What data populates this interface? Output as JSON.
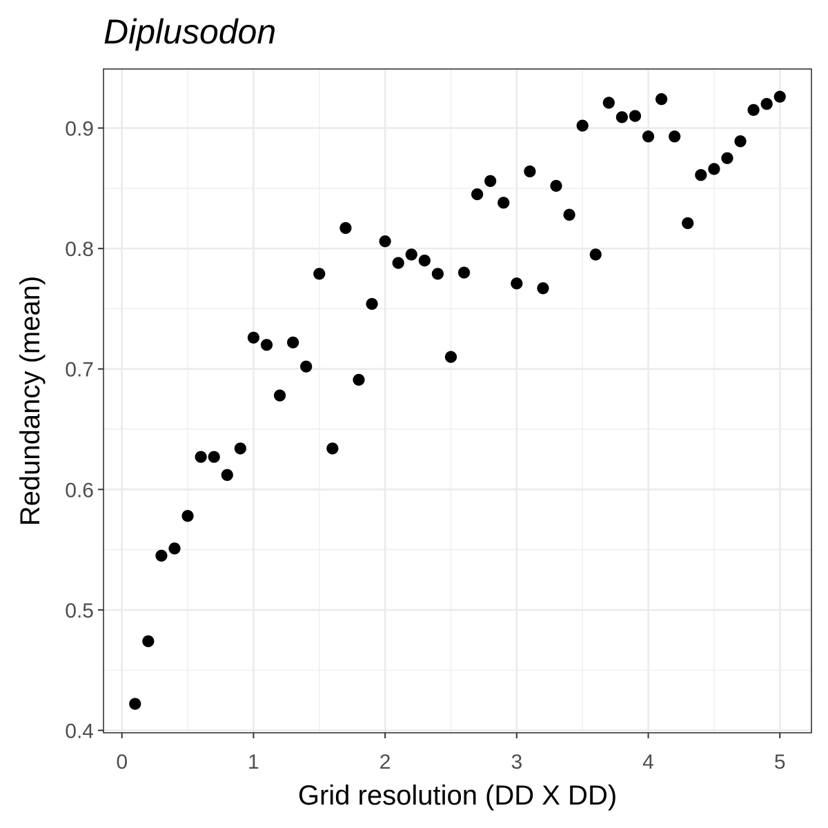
{
  "chart_data": {
    "type": "scatter",
    "title": "Diplusodon",
    "xlabel": "Grid resolution (DD X DD)",
    "ylabel": "Redundancy (mean)",
    "xlim": [
      -0.14,
      5.24
    ],
    "ylim": [
      0.398,
      0.949
    ],
    "xticks": [
      0,
      1,
      2,
      3,
      4,
      5
    ],
    "xtick_labels": [
      "0",
      "1",
      "2",
      "3",
      "4",
      "5"
    ],
    "yticks": [
      0.4,
      0.5,
      0.6,
      0.7,
      0.8,
      0.9
    ],
    "ytick_labels": [
      "0.4",
      "0.5",
      "0.6",
      "0.7",
      "0.8",
      "0.9"
    ],
    "grid": true,
    "point_color": "#000000",
    "gridline_color": "#ebebeb",
    "panel_border_color": "#333333",
    "series": [
      {
        "x": [
          0.1,
          0.2,
          0.3,
          0.4,
          0.5,
          0.6,
          0.7,
          0.8,
          0.9,
          1.0,
          1.1,
          1.2,
          1.3,
          1.4,
          1.5,
          1.6,
          1.7,
          1.8,
          1.9,
          2.0,
          2.1,
          2.2,
          2.3,
          2.4,
          2.5,
          2.6,
          2.7,
          2.8,
          2.9,
          3.0,
          3.1,
          3.2,
          3.3,
          3.4,
          3.5,
          3.6,
          3.7,
          3.8,
          3.9,
          4.0,
          4.1,
          4.2,
          4.3,
          4.4,
          4.5,
          4.6,
          4.7,
          4.8,
          4.9,
          5.0
        ],
        "y": [
          0.422,
          0.474,
          0.545,
          0.551,
          0.578,
          0.627,
          0.627,
          0.612,
          0.634,
          0.726,
          0.72,
          0.678,
          0.722,
          0.702,
          0.779,
          0.634,
          0.817,
          0.691,
          0.754,
          0.806,
          0.788,
          0.795,
          0.79,
          0.779,
          0.71,
          0.78,
          0.845,
          0.856,
          0.838,
          0.771,
          0.864,
          0.767,
          0.852,
          0.828,
          0.902,
          0.795,
          0.921,
          0.909,
          0.91,
          0.893,
          0.924,
          0.893,
          0.821,
          0.861,
          0.866,
          0.875,
          0.889,
          0.915,
          0.92,
          0.926
        ]
      }
    ]
  }
}
